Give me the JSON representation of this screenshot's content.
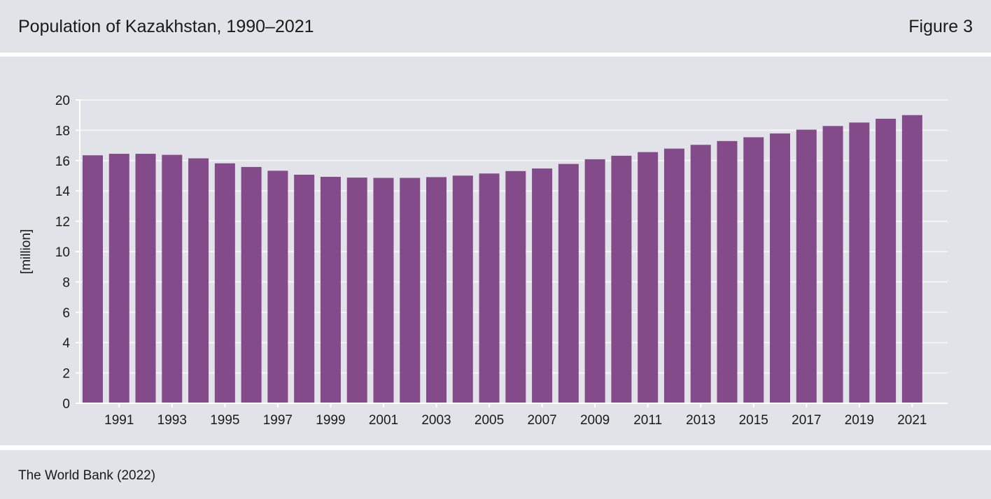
{
  "header": {
    "title": "Population of Kazakhstan, 1990–2021",
    "figure_label": "Figure 3"
  },
  "footer": {
    "source": "The World Bank (2022)"
  },
  "colors": {
    "bar": "#834b8a",
    "grid": "#f4f4f6",
    "background": "#e2e3e8"
  },
  "chart_data": {
    "type": "bar",
    "title": "Population of Kazakhstan, 1990–2021",
    "xlabel": "",
    "ylabel": "[million]",
    "ylim": [
      0,
      20
    ],
    "yticks": [
      0,
      2,
      4,
      6,
      8,
      10,
      12,
      14,
      16,
      18,
      20
    ],
    "grid": true,
    "categories": [
      "1990",
      "1991",
      "1992",
      "1993",
      "1994",
      "1995",
      "1996",
      "1997",
      "1998",
      "1999",
      "2000",
      "2001",
      "2002",
      "2003",
      "2004",
      "2005",
      "2006",
      "2007",
      "2008",
      "2009",
      "2010",
      "2011",
      "2012",
      "2013",
      "2014",
      "2015",
      "2016",
      "2017",
      "2018",
      "2019",
      "2020",
      "2021"
    ],
    "xtick_labels": [
      "1991",
      "1993",
      "1995",
      "1997",
      "1999",
      "2001",
      "2003",
      "2005",
      "2007",
      "2009",
      "2011",
      "2013",
      "2015",
      "2017",
      "2019",
      "2021"
    ],
    "values": [
      16.35,
      16.45,
      16.45,
      16.38,
      16.15,
      15.82,
      15.58,
      15.33,
      15.07,
      14.93,
      14.88,
      14.86,
      14.86,
      14.91,
      15.01,
      15.15,
      15.31,
      15.48,
      15.78,
      16.09,
      16.32,
      16.56,
      16.79,
      17.04,
      17.29,
      17.54,
      17.79,
      18.04,
      18.28,
      18.51,
      18.76,
      19.0
    ]
  }
}
